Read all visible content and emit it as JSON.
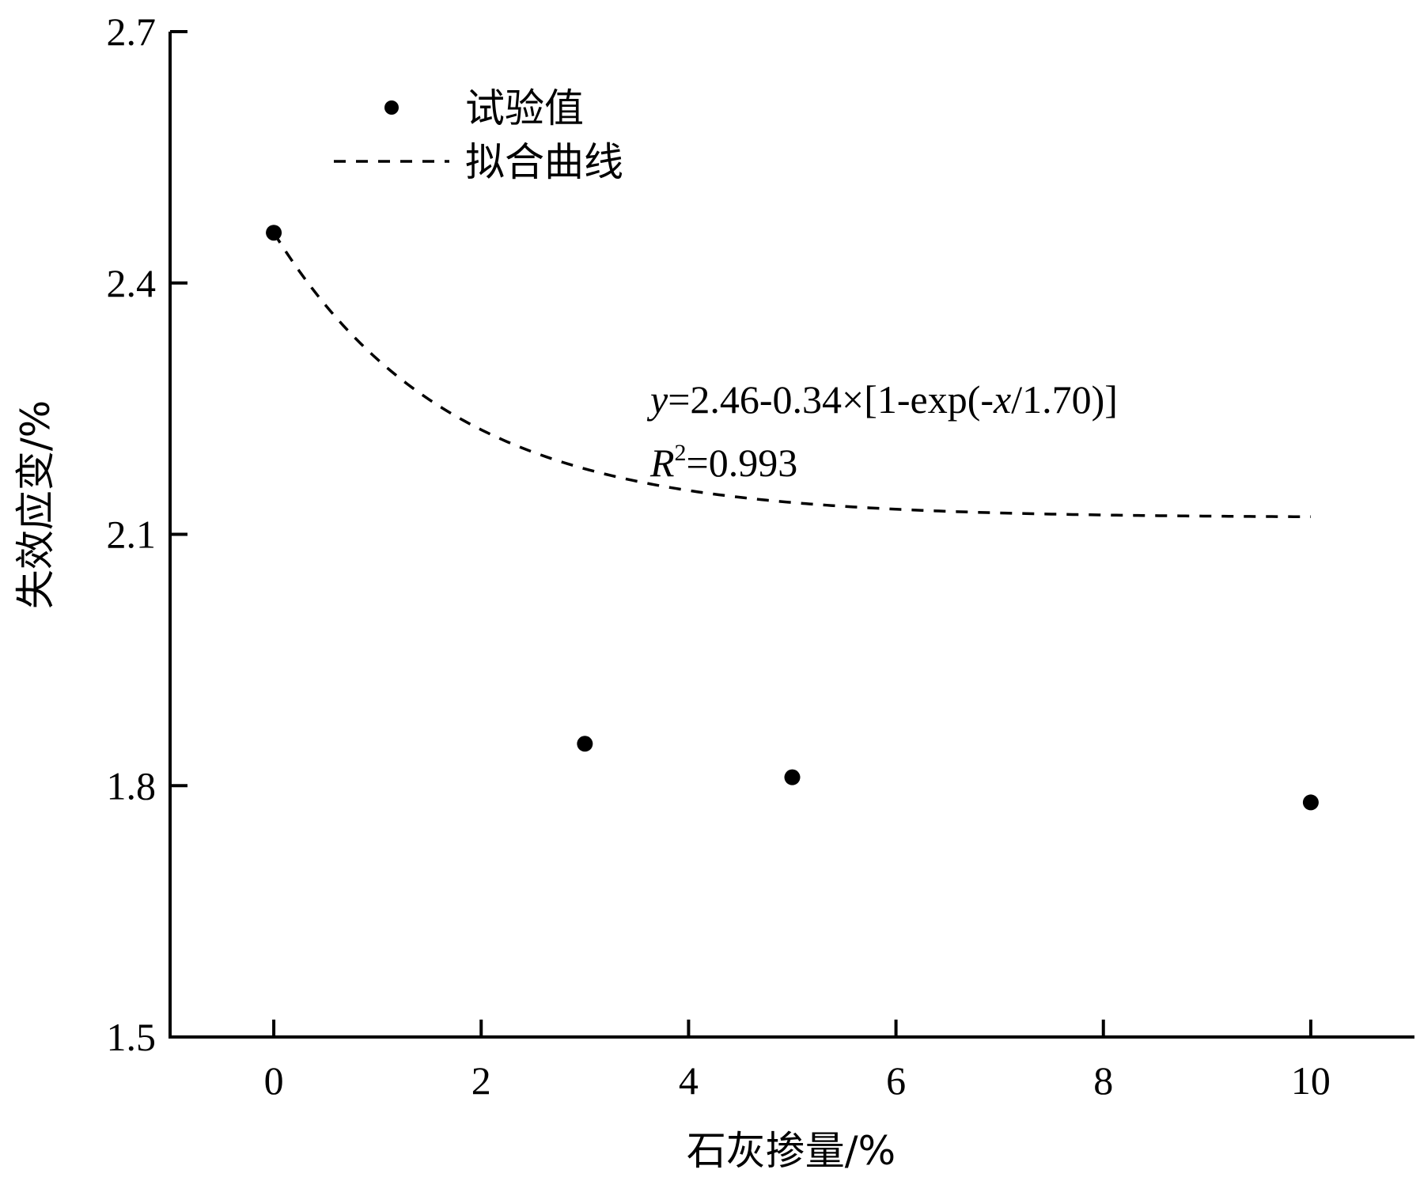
{
  "chart_data": {
    "type": "scatter",
    "xlabel": "石灰掺量/%",
    "ylabel": "失效应变/%",
    "xlim": [
      -1,
      11
    ],
    "ylim": [
      1.5,
      2.7
    ],
    "xticks": [
      "0",
      "2",
      "4",
      "6",
      "8",
      "10"
    ],
    "yticks": [
      "1.5",
      "1.8",
      "2.1",
      "2.4",
      "2.7"
    ],
    "grid": false,
    "legend_position": "top-left",
    "series": [
      {
        "name": "试验值",
        "kind": "points",
        "x": [
          0,
          3,
          5,
          10
        ],
        "y": [
          2.46,
          1.85,
          1.81,
          1.78
        ]
      },
      {
        "name": "拟合曲线",
        "kind": "dashed-line",
        "model": {
          "a": 2.46,
          "b": 0.34,
          "c": 1.7
        },
        "x_range": [
          0,
          10
        ]
      }
    ],
    "annotations": {
      "equation": "y=2.46-0.34×[1-exp(-x/1.70)]",
      "r2": "R²=0.993"
    },
    "colors": {
      "points": "#000000",
      "line": "#000000"
    }
  }
}
